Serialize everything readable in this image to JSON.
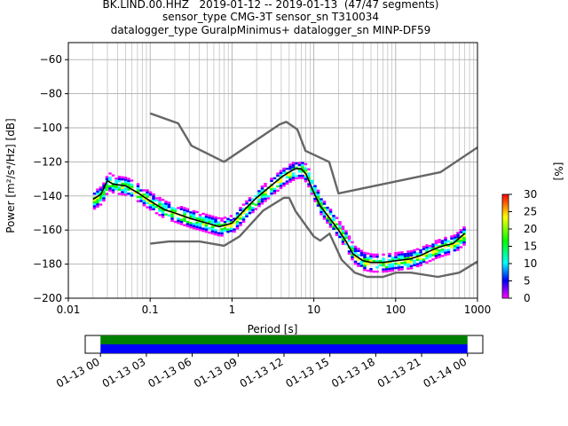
{
  "header": {
    "line1": "BK.LIND.00.HHZ   2019-01-12 -- 2019-01-13  (47/47 segments)",
    "line2": "sensor_type CMG-3T sensor_sn T310034",
    "line3": "datalogger_type GuralpMinimus+ datalogger_sn MINP-DF59"
  },
  "chart_data": [
    {
      "type": "heatmap",
      "title": "",
      "xlabel": "Period [s]",
      "ylabel": "Power [m²/s⁴/Hz] [dB]",
      "xscale": "log",
      "xlim": [
        0.01,
        1000
      ],
      "ylim": [
        -200,
        -50
      ],
      "x_tick_labels": [
        "0.01",
        "0.1",
        "1",
        "10",
        "100",
        "1000"
      ],
      "y_ticks": [
        -60,
        -80,
        -100,
        -120,
        -140,
        -160,
        -180,
        -200
      ],
      "grid": true,
      "colorbar": {
        "label": "[%]",
        "ticks": [
          0,
          5,
          10,
          15,
          20,
          25,
          30
        ],
        "range": [
          0,
          30
        ],
        "colors": [
          "#ff00ff",
          "#0000ff",
          "#00ffff",
          "#00ff00",
          "#ffff00",
          "#ff0000"
        ]
      },
      "noise_model_high": {
        "x": [
          0.1,
          0.22,
          0.32,
          0.8,
          3.8,
          4.6,
          6.3,
          7.9,
          15.4,
          20,
          354.8,
          1000
        ],
        "y": [
          -91.5,
          -97.4,
          -110.5,
          -120,
          -98,
          -96.5,
          -101,
          -113.5,
          -120,
          -138.5,
          -126,
          -111.5
        ]
      },
      "noise_model_low": {
        "x": [
          0.1,
          0.17,
          0.4,
          0.8,
          1.24,
          2.4,
          4.3,
          5,
          6,
          10,
          12,
          15.6,
          21.9,
          31.6,
          45,
          70,
          101,
          154,
          328,
          600,
          1000
        ],
        "y": [
          -168,
          -166.7,
          -166.7,
          -169.2,
          -163.7,
          -148.6,
          -141.1,
          -141.1,
          -149,
          -163.8,
          -166.2,
          -162.1,
          -177.5,
          -185,
          -187.5,
          -187.5,
          -185,
          -185,
          -187.5,
          -185,
          -178.5
        ]
      },
      "mode_curve": {
        "x": [
          0.02,
          0.025,
          0.03,
          0.035,
          0.05,
          0.07,
          0.1,
          0.15,
          0.2,
          0.3,
          0.5,
          0.7,
          1,
          1.5,
          2,
          3,
          4,
          5,
          6,
          7,
          8,
          10,
          12,
          15,
          20,
          25,
          30,
          40,
          50,
          70,
          100,
          150,
          200,
          300,
          400,
          500,
          700
        ],
        "y": [
          -142,
          -139,
          -131,
          -133,
          -134,
          -138,
          -143,
          -148,
          -150,
          -153,
          -156,
          -158,
          -156,
          -147,
          -141,
          -134,
          -129,
          -126,
          -124,
          -124,
          -127,
          -138,
          -146,
          -152,
          -160,
          -167,
          -174,
          -178,
          -179,
          -179,
          -178,
          -177,
          -175,
          -171,
          -169,
          -168,
          -162
        ]
      },
      "series": [
        {
          "name": "",
          "values": []
        }
      ]
    },
    {
      "type": "timeline",
      "x_tick_labels": [
        "01-13 00",
        "01-13 03",
        "01-13 06",
        "01-13 09",
        "01-13 12",
        "01-13 15",
        "01-13 18",
        "01-13 21",
        "01-14 00"
      ],
      "xlim_hours": [
        -1,
        25
      ],
      "bars": [
        {
          "color": "#008000",
          "start_hour": 0,
          "end_hour": 24
        },
        {
          "color": "#0000ff",
          "start_hour": 0,
          "end_hour": 24
        }
      ]
    }
  ]
}
